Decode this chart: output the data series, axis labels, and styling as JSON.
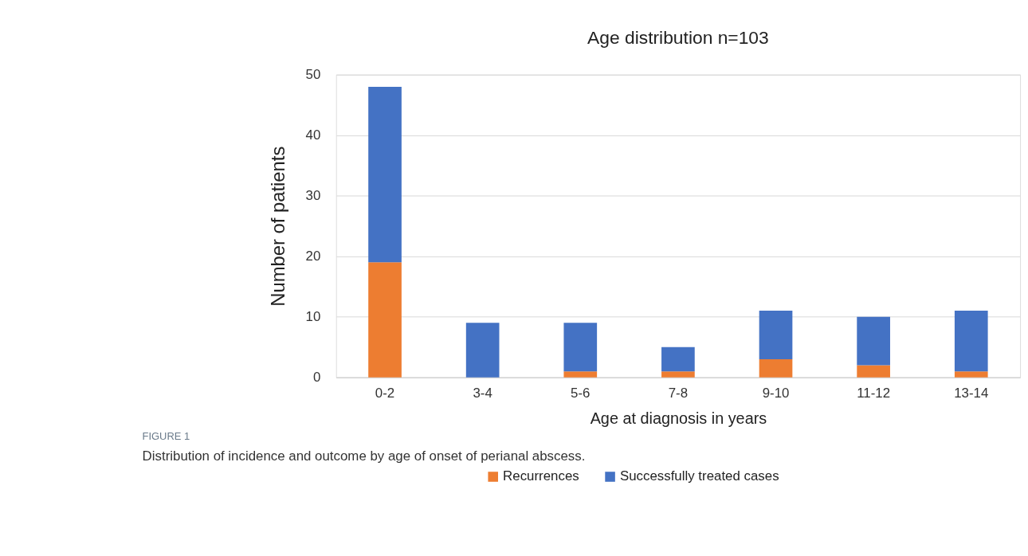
{
  "chart_data": {
    "type": "bar",
    "title": "Age distribution n=103",
    "xlabel": "Age at diagnosis in years",
    "ylabel": "Number of patients",
    "categories": [
      "0-2",
      "3-4",
      "5-6",
      "7-8",
      "9-10",
      "11-12",
      "13-14"
    ],
    "series": [
      {
        "name": "Recurrences",
        "color": "#ed7d31",
        "values": [
          19,
          0,
          1,
          1,
          3,
          2,
          1
        ]
      },
      {
        "name": "Successfully treated cases",
        "color": "#4472c4",
        "values": [
          29,
          9,
          8,
          4,
          8,
          8,
          10
        ]
      }
    ],
    "stacked": true,
    "ylim": [
      0,
      50
    ],
    "yticks": [
      0,
      10,
      20,
      30,
      40,
      50
    ],
    "grid": "y",
    "legend": "bottom",
    "annotations": [
      "FIGURE 1",
      "Distribution of incidence and outcome by age of onset of perianal abscess."
    ]
  }
}
